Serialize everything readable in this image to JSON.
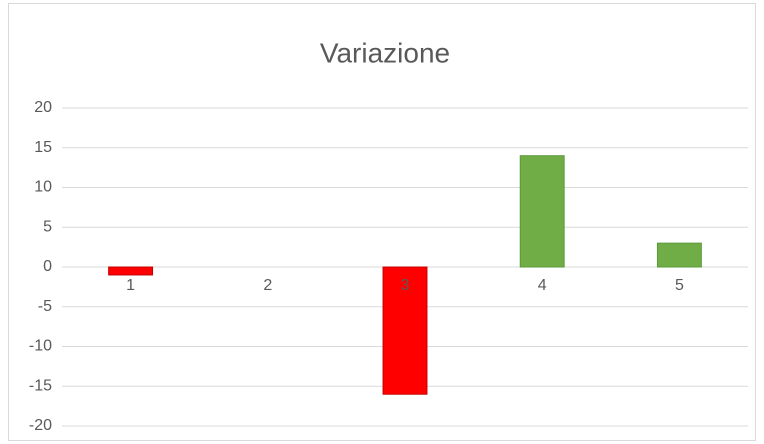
{
  "chart_data": {
    "type": "bar",
    "title": "Variazione",
    "categories": [
      "1",
      "2",
      "3",
      "4",
      "5"
    ],
    "values": [
      -1,
      0,
      -16,
      14,
      3
    ],
    "colors": [
      "#ff0000",
      "#ff0000",
      "#ff0000",
      "#70ad47",
      "#70ad47"
    ],
    "ylim": [
      -20,
      20
    ],
    "yticks": [
      -20,
      -15,
      -10,
      -5,
      0,
      5,
      10,
      15,
      20
    ],
    "grid": true
  }
}
